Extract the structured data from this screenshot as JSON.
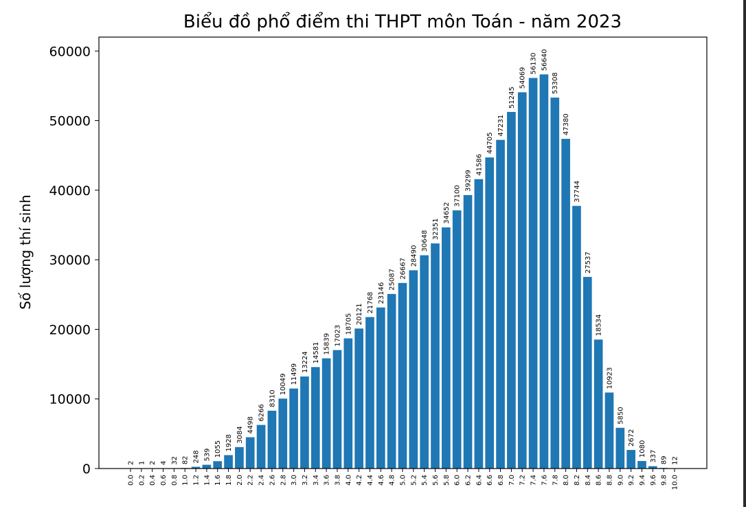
{
  "chart_data": {
    "type": "bar",
    "title": "Biểu đồ phổ điểm thi THPT môn Toán - năm 2023",
    "xlabel": "",
    "ylabel": "Số lượng thí sinh",
    "ylim": [
      0,
      62000
    ],
    "yticks": [
      0,
      10000,
      20000,
      30000,
      40000,
      50000,
      60000
    ],
    "grid": false,
    "color": "#1f77b4",
    "categories": [
      "0.0",
      "0.2",
      "0.4",
      "0.6",
      "0.8",
      "1.0",
      "1.2",
      "1.4",
      "1.6",
      "1.8",
      "2.0",
      "2.2",
      "2.4",
      "2.6",
      "2.8",
      "3.0",
      "3.2",
      "3.4",
      "3.6",
      "3.8",
      "4.0",
      "4.2",
      "4.4",
      "4.6",
      "4.8",
      "5.0",
      "5.2",
      "5.4",
      "5.6",
      "5.8",
      "6.0",
      "6.2",
      "6.4",
      "6.6",
      "6.8",
      "7.0",
      "7.2",
      "7.4",
      "7.6",
      "7.8",
      "8.0",
      "8.2",
      "8.4",
      "8.6",
      "8.8",
      "9.0",
      "9.2",
      "9.4",
      "9.6",
      "9.8",
      "10.0"
    ],
    "values": [
      2,
      1,
      2,
      4,
      32,
      82,
      248,
      539,
      1055,
      1928,
      3084,
      4498,
      6266,
      8310,
      10049,
      11499,
      13224,
      14581,
      15839,
      17023,
      18705,
      20121,
      21768,
      23146,
      25087,
      26667,
      28490,
      30648,
      32351,
      34652,
      37100,
      39299,
      41586,
      44705,
      47231,
      51245,
      54069,
      56130,
      56640,
      53308,
      47380,
      37744,
      27537,
      18534,
      10923,
      5850,
      2672,
      1080,
      337,
      89,
      12
    ]
  }
}
